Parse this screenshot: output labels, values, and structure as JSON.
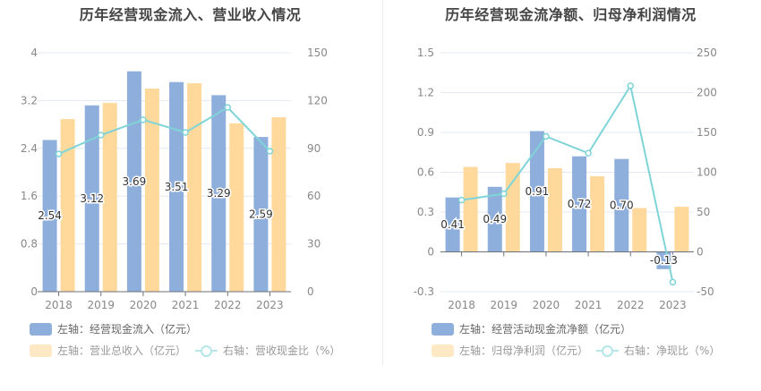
{
  "chart_data": [
    {
      "type": "bar",
      "title": "历年经营现金流入、营业收入情况",
      "categories": [
        "2018",
        "2019",
        "2020",
        "2021",
        "2022",
        "2023"
      ],
      "left_axis": {
        "ticks": [
          "0",
          "0.8",
          "1.6",
          "2.4",
          "3.2",
          "4"
        ],
        "range": [
          0,
          4
        ]
      },
      "right_axis": {
        "ticks": [
          "0",
          "30",
          "60",
          "90",
          "120",
          "150"
        ],
        "range": [
          0,
          150
        ]
      },
      "series": [
        {
          "name": "左轴：经营现金流入（亿元）",
          "type": "bar",
          "axis": "left",
          "color": "#8eaedb",
          "values": [
            2.54,
            3.12,
            3.69,
            3.51,
            3.29,
            2.59
          ],
          "labels": [
            "2.54",
            "3.12",
            "3.69",
            "3.51",
            "3.29",
            "2.59"
          ]
        },
        {
          "name": "左轴：营业总收入（亿元）",
          "type": "bar",
          "axis": "left",
          "color": "#ffd99b",
          "values": [
            2.89,
            3.16,
            3.4,
            3.49,
            2.82,
            2.92
          ]
        },
        {
          "name": "右轴：营收现金比（%）",
          "type": "line",
          "axis": "right",
          "color": "#7fd4d8",
          "values": [
            86.5,
            98.3,
            107.9,
            100.0,
            115.7,
            88.2
          ]
        }
      ],
      "legend_placement": "bottom-left",
      "grid": true
    },
    {
      "type": "bar",
      "title": "历年经营现金流净额、归母净利润情况",
      "categories": [
        "2018",
        "2019",
        "2020",
        "2021",
        "2022",
        "2023"
      ],
      "left_axis": {
        "ticks": [
          "-0.3",
          "0",
          "0.3",
          "0.6",
          "0.9",
          "1.2",
          "1.5"
        ],
        "range": [
          -0.3,
          1.5
        ]
      },
      "right_axis": {
        "ticks": [
          "-50",
          "0",
          "50",
          "100",
          "150",
          "200",
          "250"
        ],
        "range": [
          -50,
          250
        ]
      },
      "series": [
        {
          "name": "左轴：经营活动现金流净额（亿元）",
          "type": "bar",
          "axis": "left",
          "color": "#8eaedb",
          "values": [
            0.41,
            0.49,
            0.91,
            0.72,
            0.7,
            -0.13
          ],
          "labels": [
            "0.41",
            "0.49",
            "0.91",
            "0.72",
            "0.70",
            "-0.13"
          ]
        },
        {
          "name": "左轴：归母净利润（亿元）",
          "type": "bar",
          "axis": "left",
          "color": "#ffd99b",
          "values": [
            0.64,
            0.67,
            0.63,
            0.57,
            0.33,
            0.34
          ]
        },
        {
          "name": "右轴：净现比（%）",
          "type": "line",
          "axis": "right",
          "color": "#7fd4d8",
          "values": [
            65,
            73,
            145,
            124,
            208.5,
            -38
          ]
        }
      ],
      "legend_placement": "bottom-left",
      "grid": true
    }
  ]
}
